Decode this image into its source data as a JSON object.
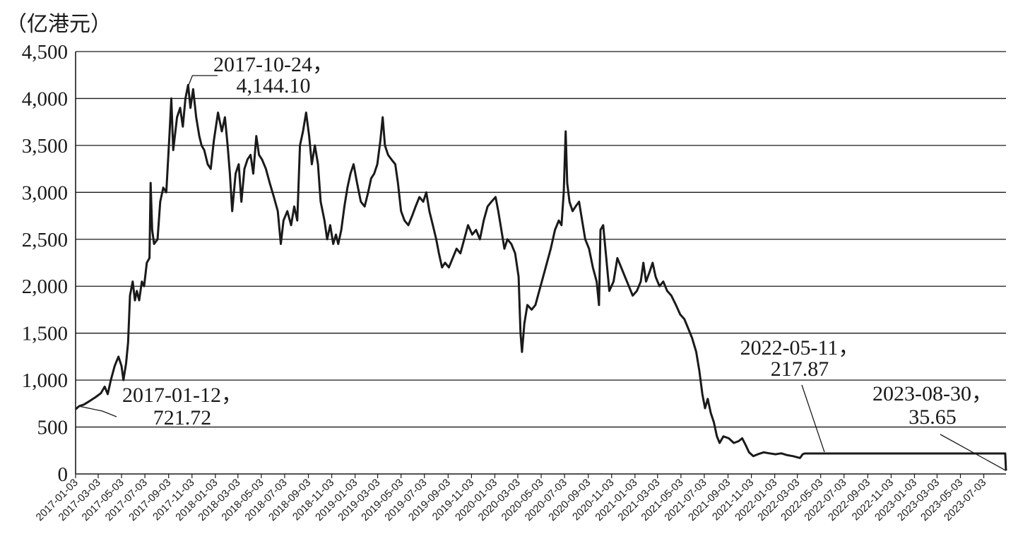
{
  "chart_data": {
    "type": "line",
    "ylabel": "（亿港元）",
    "ylim": [
      0,
      4500
    ],
    "y_ticks": [
      "0",
      "500",
      "1,000",
      "1,500",
      "2,000",
      "2,500",
      "3,000",
      "3,500",
      "4,000",
      "4,500"
    ],
    "x_ticks": [
      "2017-01-03",
      "2017-03-03",
      "2017-05-03",
      "2017-07-03",
      "2017-09-03",
      "2017-11-03",
      "2018-01-03",
      "2018-03-03",
      "2018-05-03",
      "2018-07-03",
      "2018-09-03",
      "2018-11-03",
      "2019-01-03",
      "2019-03-03",
      "2019-05-03",
      "2019-07-03",
      "2019-09-03",
      "2019-11-03",
      "2020-01-03",
      "2020-03-03",
      "2020-05-03",
      "2020-07-03",
      "2020-09-03",
      "2020-11-03",
      "2021-01-03",
      "2021-03-03",
      "2021-05-03",
      "2021-07-03",
      "2021-09-03",
      "2021-11-03",
      "2022-01-03",
      "2022-03-03",
      "2022-05-03",
      "2022-07-03",
      "2022-09-03",
      "2022-11-03",
      "2023-01-03",
      "2023-03-03",
      "2023-05-03",
      "2023-07-03"
    ],
    "grid": true,
    "series": [
      {
        "color": "#1a1a1a",
        "points": [
          [
            "2017-01-03",
            690
          ],
          [
            "2017-01-12",
            721.72
          ],
          [
            "2017-01-25",
            740
          ],
          [
            "2017-02-10",
            780
          ],
          [
            "2017-02-25",
            820
          ],
          [
            "2017-03-10",
            860
          ],
          [
            "2017-03-20",
            930
          ],
          [
            "2017-03-28",
            850
          ],
          [
            "2017-04-05",
            1000
          ],
          [
            "2017-04-15",
            1150
          ],
          [
            "2017-04-25",
            1250
          ],
          [
            "2017-05-03",
            1150
          ],
          [
            "2017-05-08",
            1000
          ],
          [
            "2017-05-15",
            1180
          ],
          [
            "2017-05-20",
            1400
          ],
          [
            "2017-05-25",
            1900
          ],
          [
            "2017-06-01",
            2050
          ],
          [
            "2017-06-07",
            1850
          ],
          [
            "2017-06-12",
            1950
          ],
          [
            "2017-06-18",
            1850
          ],
          [
            "2017-06-25",
            2050
          ],
          [
            "2017-07-01",
            2000
          ],
          [
            "2017-07-08",
            2250
          ],
          [
            "2017-07-15",
            2300
          ],
          [
            "2017-07-18",
            3100
          ],
          [
            "2017-07-22",
            2600
          ],
          [
            "2017-07-27",
            2450
          ],
          [
            "2017-08-05",
            2500
          ],
          [
            "2017-08-12",
            2900
          ],
          [
            "2017-08-20",
            3050
          ],
          [
            "2017-08-28",
            3000
          ],
          [
            "2017-09-05",
            3600
          ],
          [
            "2017-09-10",
            4000
          ],
          [
            "2017-09-15",
            3450
          ],
          [
            "2017-09-25",
            3800
          ],
          [
            "2017-10-03",
            3900
          ],
          [
            "2017-10-10",
            3700
          ],
          [
            "2017-10-17",
            4000
          ],
          [
            "2017-10-24",
            4144.1
          ],
          [
            "2017-10-30",
            3900
          ],
          [
            "2017-11-06",
            4100
          ],
          [
            "2017-11-14",
            3800
          ],
          [
            "2017-11-22",
            3600
          ],
          [
            "2017-11-28",
            3500
          ],
          [
            "2017-12-05",
            3450
          ],
          [
            "2017-12-14",
            3300
          ],
          [
            "2017-12-22",
            3250
          ],
          [
            "2017-12-30",
            3550
          ],
          [
            "2018-01-10",
            3850
          ],
          [
            "2018-01-20",
            3650
          ],
          [
            "2018-01-28",
            3800
          ],
          [
            "2018-02-04",
            3500
          ],
          [
            "2018-02-10",
            3200
          ],
          [
            "2018-02-16",
            2800
          ],
          [
            "2018-02-25",
            3200
          ],
          [
            "2018-03-05",
            3300
          ],
          [
            "2018-03-12",
            2900
          ],
          [
            "2018-03-20",
            3250
          ],
          [
            "2018-03-28",
            3350
          ],
          [
            "2018-04-05",
            3400
          ],
          [
            "2018-04-12",
            3200
          ],
          [
            "2018-04-20",
            3600
          ],
          [
            "2018-04-27",
            3400
          ],
          [
            "2018-05-05",
            3350
          ],
          [
            "2018-05-15",
            3250
          ],
          [
            "2018-05-25",
            3100
          ],
          [
            "2018-06-05",
            2950
          ],
          [
            "2018-06-15",
            2800
          ],
          [
            "2018-06-23",
            2450
          ],
          [
            "2018-06-30",
            2700
          ],
          [
            "2018-07-10",
            2800
          ],
          [
            "2018-07-20",
            2650
          ],
          [
            "2018-07-28",
            2850
          ],
          [
            "2018-08-05",
            2700
          ],
          [
            "2018-08-12",
            3500
          ],
          [
            "2018-08-20",
            3650
          ],
          [
            "2018-08-28",
            3850
          ],
          [
            "2018-09-05",
            3600
          ],
          [
            "2018-09-12",
            3300
          ],
          [
            "2018-09-20",
            3500
          ],
          [
            "2018-09-28",
            3300
          ],
          [
            "2018-10-05",
            2900
          ],
          [
            "2018-10-15",
            2700
          ],
          [
            "2018-10-22",
            2500
          ],
          [
            "2018-10-30",
            2650
          ],
          [
            "2018-11-07",
            2450
          ],
          [
            "2018-11-14",
            2550
          ],
          [
            "2018-11-20",
            2450
          ],
          [
            "2018-11-28",
            2600
          ],
          [
            "2018-12-06",
            2850
          ],
          [
            "2018-12-14",
            3050
          ],
          [
            "2018-12-22",
            3200
          ],
          [
            "2018-12-30",
            3300
          ],
          [
            "2019-01-08",
            3100
          ],
          [
            "2019-01-18",
            2900
          ],
          [
            "2019-01-28",
            2850
          ],
          [
            "2019-02-06",
            3000
          ],
          [
            "2019-02-14",
            3150
          ],
          [
            "2019-02-22",
            3200
          ],
          [
            "2019-03-02",
            3300
          ],
          [
            "2019-03-10",
            3550
          ],
          [
            "2019-03-16",
            3800
          ],
          [
            "2019-03-22",
            3500
          ],
          [
            "2019-03-30",
            3400
          ],
          [
            "2019-04-08",
            3350
          ],
          [
            "2019-04-18",
            3300
          ],
          [
            "2019-04-25",
            3100
          ],
          [
            "2019-05-03",
            2800
          ],
          [
            "2019-05-12",
            2700
          ],
          [
            "2019-05-22",
            2650
          ],
          [
            "2019-06-01",
            2750
          ],
          [
            "2019-06-10",
            2850
          ],
          [
            "2019-06-20",
            2950
          ],
          [
            "2019-06-30",
            2900
          ],
          [
            "2019-07-08",
            3000
          ],
          [
            "2019-07-16",
            2800
          ],
          [
            "2019-07-25",
            2650
          ],
          [
            "2019-08-03",
            2500
          ],
          [
            "2019-08-10",
            2350
          ],
          [
            "2019-08-18",
            2200
          ],
          [
            "2019-08-26",
            2250
          ],
          [
            "2019-09-05",
            2200
          ],
          [
            "2019-09-15",
            2300
          ],
          [
            "2019-09-25",
            2400
          ],
          [
            "2019-10-05",
            2350
          ],
          [
            "2019-10-15",
            2500
          ],
          [
            "2019-10-25",
            2650
          ],
          [
            "2019-11-05",
            2550
          ],
          [
            "2019-11-15",
            2600
          ],
          [
            "2019-11-25",
            2500
          ],
          [
            "2019-12-05",
            2700
          ],
          [
            "2019-12-15",
            2850
          ],
          [
            "2019-12-25",
            2900
          ],
          [
            "2020-01-05",
            2950
          ],
          [
            "2020-01-12",
            2800
          ],
          [
            "2020-01-20",
            2600
          ],
          [
            "2020-01-28",
            2400
          ],
          [
            "2020-02-05",
            2500
          ],
          [
            "2020-02-15",
            2450
          ],
          [
            "2020-02-25",
            2350
          ],
          [
            "2020-03-05",
            2100
          ],
          [
            "2020-03-10",
            1500
          ],
          [
            "2020-03-14",
            1300
          ],
          [
            "2020-03-20",
            1600
          ],
          [
            "2020-03-28",
            1800
          ],
          [
            "2020-04-08",
            1750
          ],
          [
            "2020-04-18",
            1800
          ],
          [
            "2020-04-28",
            1950
          ],
          [
            "2020-05-08",
            2100
          ],
          [
            "2020-05-18",
            2250
          ],
          [
            "2020-05-28",
            2400
          ],
          [
            "2020-06-08",
            2600
          ],
          [
            "2020-06-18",
            2700
          ],
          [
            "2020-06-25",
            2650
          ],
          [
            "2020-07-01",
            3000
          ],
          [
            "2020-07-06",
            3650
          ],
          [
            "2020-07-10",
            3100
          ],
          [
            "2020-07-16",
            2900
          ],
          [
            "2020-07-24",
            2800
          ],
          [
            "2020-08-01",
            2850
          ],
          [
            "2020-08-10",
            2900
          ],
          [
            "2020-08-18",
            2700
          ],
          [
            "2020-08-26",
            2500
          ],
          [
            "2020-09-05",
            2400
          ],
          [
            "2020-09-15",
            2200
          ],
          [
            "2020-09-25",
            2050
          ],
          [
            "2020-10-01",
            1800
          ],
          [
            "2020-10-05",
            2600
          ],
          [
            "2020-10-12",
            2650
          ],
          [
            "2020-10-20",
            2300
          ],
          [
            "2020-10-28",
            1950
          ],
          [
            "2020-11-08",
            2050
          ],
          [
            "2020-11-18",
            2300
          ],
          [
            "2020-11-28",
            2200
          ],
          [
            "2020-12-08",
            2100
          ],
          [
            "2020-12-18",
            2000
          ],
          [
            "2020-12-28",
            1900
          ],
          [
            "2021-01-08",
            1950
          ],
          [
            "2021-01-18",
            2050
          ],
          [
            "2021-01-25",
            2250
          ],
          [
            "2021-02-01",
            2050
          ],
          [
            "2021-02-10",
            2150
          ],
          [
            "2021-02-18",
            2250
          ],
          [
            "2021-02-26",
            2100
          ],
          [
            "2021-03-08",
            2000
          ],
          [
            "2021-03-18",
            2050
          ],
          [
            "2021-03-28",
            1950
          ],
          [
            "2021-04-08",
            1900
          ],
          [
            "2021-04-20",
            1800
          ],
          [
            "2021-05-01",
            1700
          ],
          [
            "2021-05-12",
            1650
          ],
          [
            "2021-05-22",
            1550
          ],
          [
            "2021-06-01",
            1450
          ],
          [
            "2021-06-12",
            1300
          ],
          [
            "2021-06-20",
            1100
          ],
          [
            "2021-06-28",
            850
          ],
          [
            "2021-07-05",
            700
          ],
          [
            "2021-07-12",
            800
          ],
          [
            "2021-07-20",
            650
          ],
          [
            "2021-07-28",
            550
          ],
          [
            "2021-08-05",
            400
          ],
          [
            "2021-08-12",
            330
          ],
          [
            "2021-08-22",
            400
          ],
          [
            "2021-09-05",
            380
          ],
          [
            "2021-09-18",
            330
          ],
          [
            "2021-10-01",
            350
          ],
          [
            "2021-10-10",
            380
          ],
          [
            "2021-10-20",
            300
          ],
          [
            "2021-10-28",
            230
          ],
          [
            "2021-11-08",
            190
          ],
          [
            "2021-11-20",
            210
          ],
          [
            "2021-12-05",
            230
          ],
          [
            "2021-12-20",
            220
          ],
          [
            "2022-01-05",
            210
          ],
          [
            "2022-01-20",
            220
          ],
          [
            "2022-02-05",
            200
          ],
          [
            "2022-02-20",
            190
          ],
          [
            "2022-03-10",
            170
          ],
          [
            "2022-03-17",
            210
          ],
          [
            "2022-03-22",
            217.87
          ],
          [
            "2022-05-11",
            217.87
          ],
          [
            "2022-09-01",
            217.87
          ],
          [
            "2023-01-01",
            217.87
          ],
          [
            "2023-05-01",
            217.87
          ],
          [
            "2023-08-28",
            217.87
          ],
          [
            "2023-08-30",
            35.65
          ]
        ]
      }
    ],
    "annotations": [
      {
        "date": "2017-10-24",
        "value": 4144.1,
        "line1": "2017-10-24，",
        "line2": "4,144.10"
      },
      {
        "date": "2017-01-12",
        "value": 721.72,
        "line1": "2017-01-12，",
        "line2": "721.72"
      },
      {
        "date": "2022-05-11",
        "value": 217.87,
        "line1": "2022-05-11，",
        "line2": "217.87"
      },
      {
        "date": "2023-08-30",
        "value": 35.65,
        "line1": "2023-08-30，",
        "line2": "35.65"
      }
    ]
  }
}
